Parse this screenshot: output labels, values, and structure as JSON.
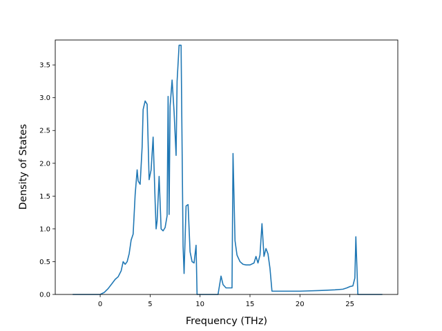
{
  "chart_data": {
    "type": "line",
    "title": "",
    "xlabel": "Frequency (THz)",
    "ylabel": "Density of States",
    "xlim": [
      -4.5,
      29.8
    ],
    "ylim": [
      0,
      3.88
    ],
    "x_ticks": [
      0,
      5,
      10,
      15,
      20,
      25
    ],
    "y_ticks": [
      0.0,
      0.5,
      1.0,
      1.5,
      2.0,
      2.5,
      3.0,
      3.5
    ],
    "x_tick_labels": [
      "0",
      "5",
      "10",
      "15",
      "20",
      "25"
    ],
    "y_tick_labels": [
      "0.0",
      "0.5",
      "1.0",
      "1.5",
      "2.0",
      "2.5",
      "3.0",
      "3.5"
    ],
    "grid": false,
    "legend": "none",
    "colors": {
      "line": "#1f77b4",
      "axes": "#000000",
      "background": "#ffffff"
    },
    "series": [
      {
        "x": [
          -2.7,
          0.0,
          0.4,
          0.8,
          1.2,
          1.5,
          1.8,
          2.1,
          2.3,
          2.5,
          2.7,
          2.9,
          3.1,
          3.3,
          3.5,
          3.7,
          3.8,
          4.0,
          4.2,
          4.3,
          4.5,
          4.7,
          4.9,
          5.1,
          5.3,
          5.5,
          5.6,
          5.7,
          5.9,
          6.1,
          6.3,
          6.5,
          6.7,
          6.8,
          6.9,
          7.0,
          7.2,
          7.4,
          7.6,
          7.7,
          7.9,
          8.1,
          8.3,
          8.4,
          8.6,
          8.8,
          9.0,
          9.2,
          9.4,
          9.6,
          9.7,
          9.9,
          11.8,
          12.1,
          12.3,
          12.6,
          13.2,
          13.3,
          13.5,
          13.7,
          14.0,
          14.3,
          14.6,
          15.0,
          15.4,
          15.6,
          15.8,
          16.0,
          16.2,
          16.4,
          16.6,
          16.8,
          17.0,
          17.2,
          20.0,
          22.0,
          23.5,
          24.3,
          24.7,
          25.0,
          25.3,
          25.5,
          25.6,
          25.8,
          28.2
        ],
        "y": [
          0.0,
          0.0,
          0.03,
          0.09,
          0.17,
          0.23,
          0.27,
          0.36,
          0.5,
          0.46,
          0.5,
          0.62,
          0.83,
          0.92,
          1.52,
          1.9,
          1.73,
          1.68,
          2.25,
          2.82,
          2.95,
          2.9,
          1.75,
          1.9,
          2.4,
          1.42,
          1.0,
          1.12,
          1.8,
          1.0,
          0.97,
          1.02,
          1.2,
          3.02,
          1.22,
          2.87,
          3.27,
          2.78,
          2.12,
          3.25,
          3.8,
          3.8,
          0.73,
          0.32,
          1.35,
          1.37,
          0.65,
          0.5,
          0.48,
          0.75,
          0.0,
          0.0,
          0.0,
          0.28,
          0.15,
          0.1,
          0.1,
          2.15,
          0.82,
          0.6,
          0.5,
          0.46,
          0.45,
          0.45,
          0.48,
          0.58,
          0.48,
          0.6,
          1.08,
          0.58,
          0.7,
          0.62,
          0.4,
          0.05,
          0.05,
          0.06,
          0.07,
          0.08,
          0.1,
          0.12,
          0.13,
          0.25,
          0.88,
          0.0,
          0.0
        ]
      }
    ]
  }
}
